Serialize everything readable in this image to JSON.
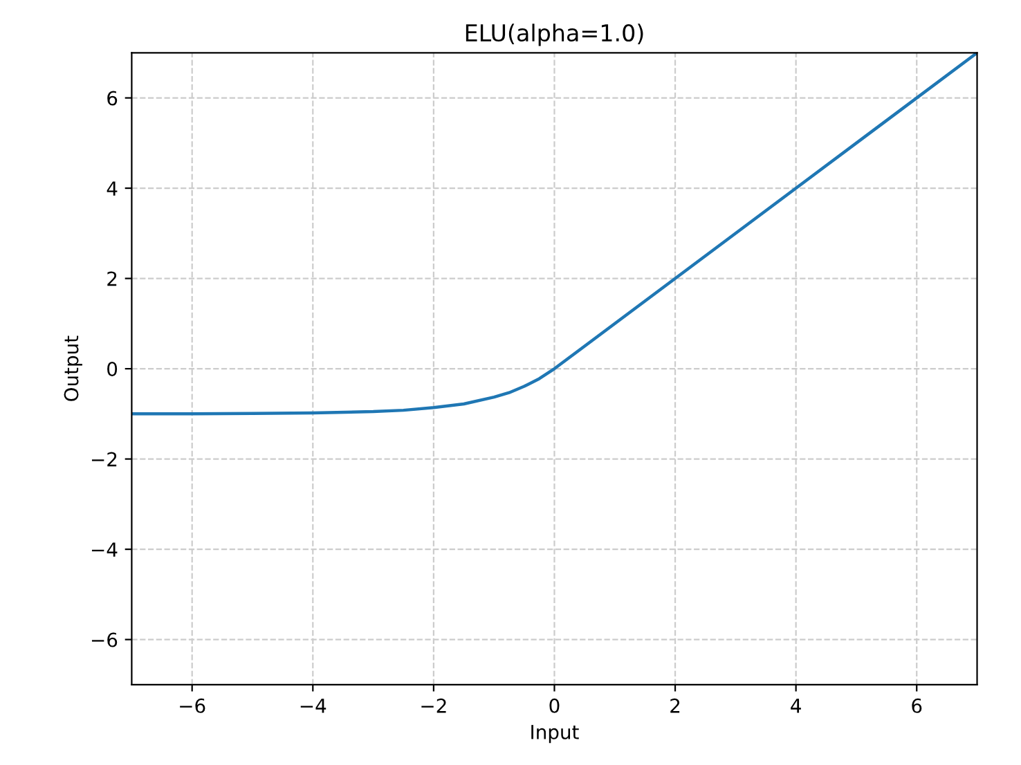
{
  "chart_data": {
    "type": "line",
    "title": "ELU(alpha=1.0)",
    "xlabel": "Input",
    "ylabel": "Output",
    "x": [
      -7,
      -6,
      -5,
      -4,
      -3,
      -2.5,
      -2,
      -1.5,
      -1,
      -0.75,
      -0.5,
      -0.25,
      0,
      7
    ],
    "series": [
      {
        "color": "#1f77b4",
        "values": [
          -1.0,
          -1.0,
          -0.99,
          -0.98,
          -0.95,
          -0.92,
          -0.86,
          -0.78,
          -0.63,
          -0.53,
          -0.39,
          -0.22,
          0,
          7
        ]
      }
    ],
    "xlim": [
      -7,
      7
    ],
    "ylim": [
      -7,
      7
    ],
    "xticks": [
      {
        "value": -6,
        "label": "−6"
      },
      {
        "value": -4,
        "label": "−4"
      },
      {
        "value": -2,
        "label": "−2"
      },
      0,
      2,
      4,
      6
    ],
    "yticks": [
      {
        "value": -6,
        "label": "−6"
      },
      {
        "value": -4,
        "label": "−4"
      },
      {
        "value": -2,
        "label": "−2"
      },
      0,
      2,
      4,
      6
    ],
    "grid": true,
    "line_style": "solid",
    "marker": "none"
  }
}
